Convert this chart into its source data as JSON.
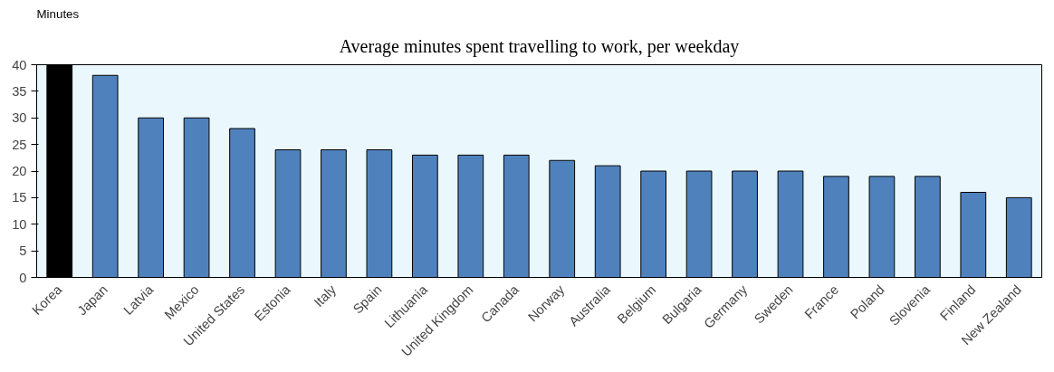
{
  "chart_data": {
    "type": "bar",
    "title": "Average minutes spent travelling to work, per weekday",
    "ylabel": "Minutes",
    "categories": [
      "Korea",
      "Japan",
      "Latvia",
      "Mexico",
      "United States",
      "Estonia",
      "Italy",
      "Spain",
      "Lithuania",
      "United Kingdom",
      "Canada",
      "Norway",
      "Australia",
      "Belgium",
      "Bulgaria",
      "Germany",
      "Sweden",
      "France",
      "Poland",
      "Slovenia",
      "Finland",
      "New Zealand"
    ],
    "values": [
      40,
      38,
      30,
      30,
      28,
      24,
      24,
      24,
      23,
      23,
      23,
      22,
      21,
      20,
      20,
      20,
      20,
      19,
      19,
      19,
      16,
      15
    ],
    "colors": [
      "#000000",
      "#4f81bd",
      "#4f81bd",
      "#4f81bd",
      "#4f81bd",
      "#4f81bd",
      "#4f81bd",
      "#4f81bd",
      "#4f81bd",
      "#4f81bd",
      "#4f81bd",
      "#4f81bd",
      "#4f81bd",
      "#4f81bd",
      "#4f81bd",
      "#4f81bd",
      "#4f81bd",
      "#4f81bd",
      "#4f81bd",
      "#4f81bd",
      "#4f81bd",
      "#4f81bd"
    ],
    "ylim": [
      0,
      40
    ],
    "yticks": [
      0,
      5,
      10,
      15,
      20,
      25,
      30,
      35,
      40
    ],
    "grid": false
  }
}
